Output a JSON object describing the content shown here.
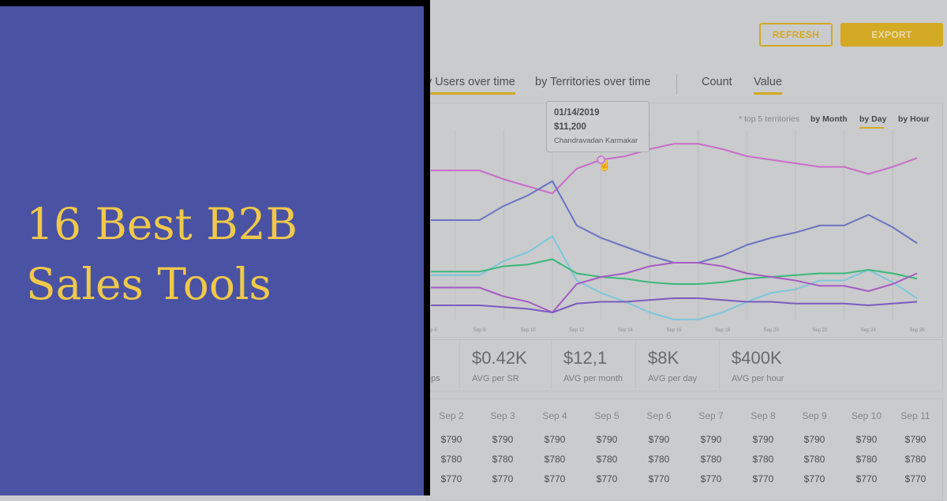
{
  "headline": {
    "line1": "16 Best B2B",
    "line2": "Sales Tools"
  },
  "toolbar": {
    "refresh_label": "REFRESH",
    "export_label": "EXPORT",
    "accent": "#d4a923"
  },
  "view_tabs": [
    {
      "label": "y Users over time",
      "active": true
    },
    {
      "label": "by Territories over time",
      "active": false
    }
  ],
  "metric_tabs": [
    {
      "label": "Count",
      "active": false
    },
    {
      "label": "Value",
      "active": true
    }
  ],
  "chart_controls": {
    "note": "* top 5 territories",
    "granularity": [
      {
        "label": "by Month",
        "active": false
      },
      {
        "label": "by Day",
        "active": true
      },
      {
        "label": "by Hour",
        "active": false
      }
    ]
  },
  "tooltip": {
    "date": "01/14/2019",
    "value": "$11,200",
    "name": "Chandravadan Karmakar"
  },
  "chart_data": {
    "type": "line",
    "x": [
      6,
      7,
      8,
      9,
      10,
      11,
      12,
      13,
      14,
      15,
      16,
      17,
      18,
      19,
      20,
      21,
      22,
      23,
      24,
      25,
      26
    ],
    "tick_labels": [
      "Sep 6",
      "Sep 8",
      "Sep 10",
      "Sep 12",
      "Sep 14",
      "Sep 16",
      "Sep 18",
      "Sep 20",
      "Sep 22",
      "Sep 24",
      "Sep 26"
    ],
    "ylim": [
      0,
      100
    ],
    "grid": "vertical",
    "series": [
      {
        "color": "#c96ec9",
        "values": [
          84,
          84,
          84,
          79,
          75,
          71,
          85,
          90,
          92,
          96,
          99,
          99,
          96,
          92,
          90,
          88,
          86,
          86,
          82,
          86,
          91
        ]
      },
      {
        "color": "#6b73c2",
        "values": [
          56,
          56,
          56,
          64,
          70,
          78,
          53,
          46,
          41,
          36,
          32,
          32,
          36,
          42,
          46,
          49,
          53,
          53,
          59,
          52,
          43
        ]
      },
      {
        "color": "#7ec6dc",
        "values": [
          25,
          25,
          25,
          33,
          38,
          47,
          22,
          15,
          10,
          4,
          0,
          0,
          4,
          10,
          15,
          17,
          22,
          22,
          28,
          21,
          12
        ]
      },
      {
        "color": "#3bb87a",
        "values": [
          27,
          27,
          27,
          30,
          31,
          34,
          26,
          24,
          23,
          21,
          20,
          20,
          21,
          23,
          24,
          25,
          26,
          26,
          28,
          26,
          23
        ]
      },
      {
        "color": "#a55cc4",
        "values": [
          18,
          18,
          18,
          13,
          10,
          4,
          20,
          24,
          26,
          30,
          32,
          32,
          30,
          26,
          24,
          22,
          19,
          19,
          16,
          20,
          26
        ]
      },
      {
        "color": "#7a5cc0",
        "values": [
          8,
          8,
          8,
          7,
          6,
          4,
          9,
          10,
          10,
          11,
          12,
          12,
          11,
          10,
          10,
          9,
          9,
          9,
          8,
          9,
          10
        ]
      }
    ],
    "highlight": {
      "series": 0,
      "x": 13
    }
  },
  "stats": [
    {
      "value": "",
      "label": "eps"
    },
    {
      "value": "$0.42K",
      "label": "AVG per SR"
    },
    {
      "value": "$12,1",
      "label": "AVG per month"
    },
    {
      "value": "$8K",
      "label": "AVG per day"
    },
    {
      "value": "$400K",
      "label": "AVG per hour"
    }
  ],
  "table": {
    "headers": [
      "Sep 2",
      "Sep 3",
      "Sep 4",
      "Sep 5",
      "Sep 6",
      "Sep 7",
      "Sep 8",
      "Sep 9",
      "Sep 10",
      "Sep 11"
    ],
    "rows": [
      [
        "$790",
        "$790",
        "$790",
        "$790",
        "$790",
        "$790",
        "$790",
        "$790",
        "$790",
        "$790"
      ],
      [
        "$780",
        "$780",
        "$780",
        "$780",
        "$780",
        "$780",
        "$780",
        "$780",
        "$780",
        "$780"
      ],
      [
        "$770",
        "$770",
        "$770",
        "$770",
        "$770",
        "$770",
        "$770",
        "$770",
        "$770",
        "$770"
      ]
    ]
  },
  "colors": {
    "overlay": "#4a52a4",
    "headline": "#f0c94a",
    "background": "#c9cbcc"
  }
}
